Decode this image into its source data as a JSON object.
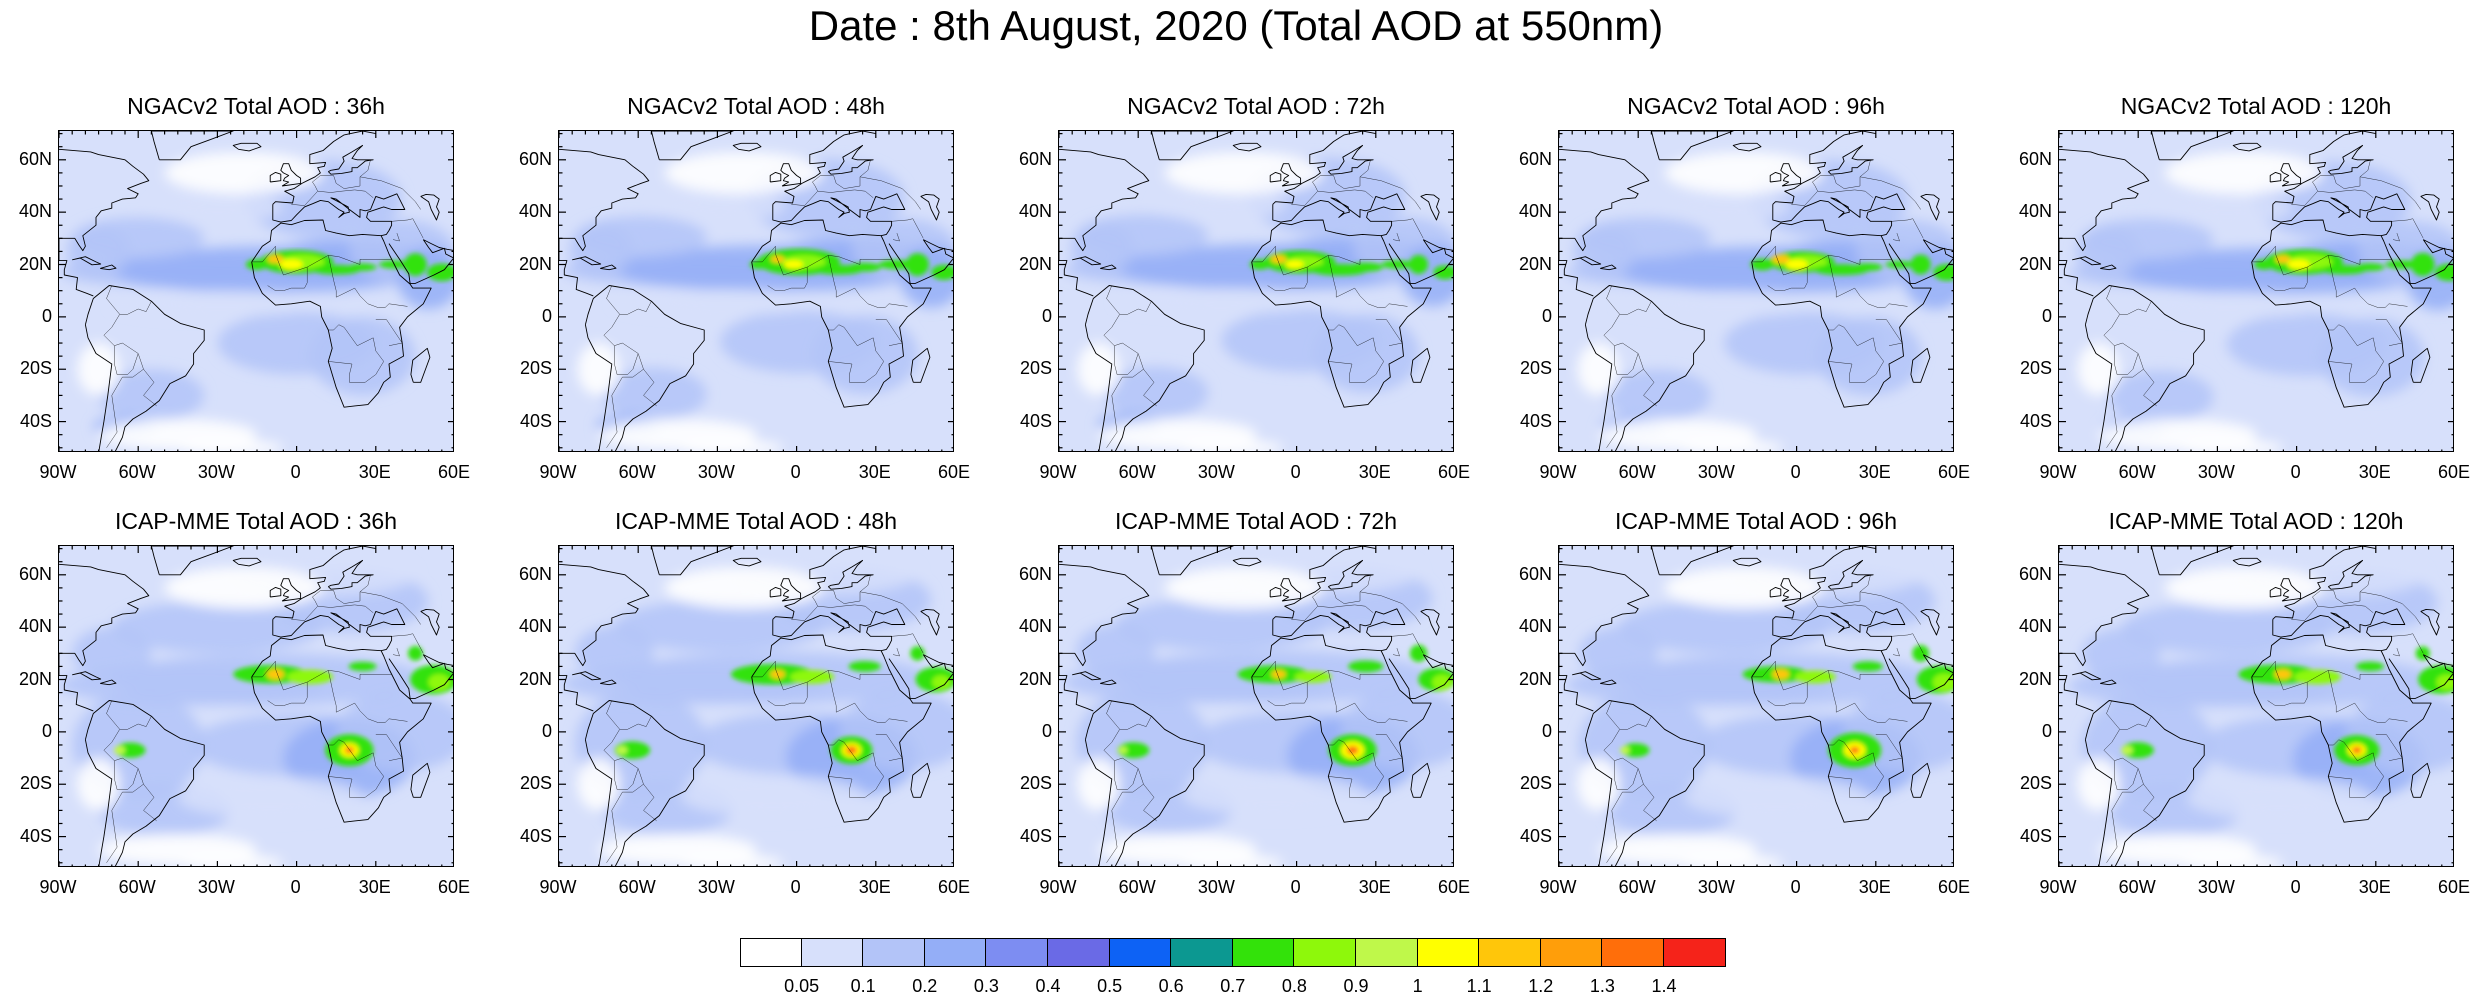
{
  "title": "Date : 8th August, 2020 (Total AOD at 550nm)",
  "lat_ticks": [
    "60N",
    "40N",
    "20N",
    "0",
    "20S",
    "40S"
  ],
  "lon_ticks": [
    "90W",
    "60W",
    "30W",
    "0",
    "30E",
    "60E"
  ],
  "rows": [
    {
      "panels": [
        {
          "title": "NGACv2 Total AOD : 36h"
        },
        {
          "title": "NGACv2 Total AOD : 48h"
        },
        {
          "title": "NGACv2 Total AOD : 72h"
        },
        {
          "title": "NGACv2 Total AOD : 96h"
        },
        {
          "title": "NGACv2 Total AOD : 120h"
        }
      ]
    },
    {
      "panels": [
        {
          "title": "ICAP-MME Total AOD : 36h"
        },
        {
          "title": "ICAP-MME Total AOD : 48h"
        },
        {
          "title": "ICAP-MME Total AOD : 72h"
        },
        {
          "title": "ICAP-MME Total AOD : 96h"
        },
        {
          "title": "ICAP-MME Total AOD : 120h"
        }
      ]
    }
  ],
  "colorbar": {
    "labels": [
      "0.05",
      "0.1",
      "0.2",
      "0.3",
      "0.4",
      "0.5",
      "0.6",
      "0.7",
      "0.8",
      "0.9",
      "1",
      "1.1",
      "1.2",
      "1.3",
      "1.4"
    ],
    "colors": [
      "#ffffff",
      "#d7e0fb",
      "#b3c4f8",
      "#94aef7",
      "#7d8df2",
      "#6a6ae6",
      "#0d62f5",
      "#0c9891",
      "#33e20a",
      "#8ef80b",
      "#bff84a",
      "#ffff00",
      "#ffc60a",
      "#ff9e0a",
      "#ff6e0a",
      "#f5231a"
    ]
  }
}
